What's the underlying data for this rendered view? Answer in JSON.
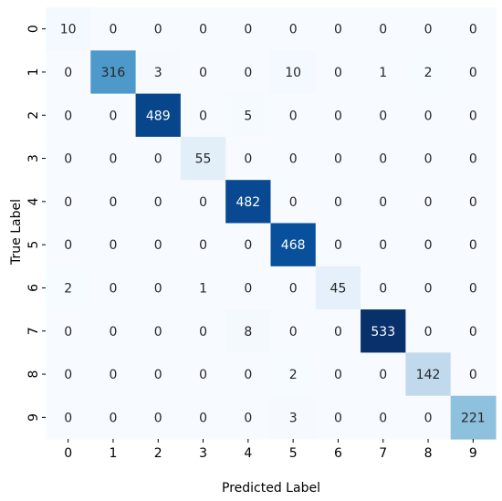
{
  "chart_data": {
    "type": "heatmap",
    "title": "",
    "xlabel": "Predicted Label",
    "ylabel": "True Label",
    "x_categories": [
      "0",
      "1",
      "2",
      "3",
      "4",
      "5",
      "6",
      "7",
      "8",
      "9"
    ],
    "y_categories": [
      "0",
      "1",
      "2",
      "3",
      "4",
      "5",
      "6",
      "7",
      "8",
      "9"
    ],
    "matrix": [
      [
        10,
        0,
        0,
        0,
        0,
        0,
        0,
        0,
        0,
        0
      ],
      [
        0,
        316,
        3,
        0,
        0,
        10,
        0,
        1,
        2,
        0
      ],
      [
        0,
        0,
        489,
        0,
        5,
        0,
        0,
        0,
        0,
        0
      ],
      [
        0,
        0,
        0,
        55,
        0,
        0,
        0,
        0,
        0,
        0
      ],
      [
        0,
        0,
        0,
        0,
        482,
        0,
        0,
        0,
        0,
        0
      ],
      [
        0,
        0,
        0,
        0,
        0,
        468,
        0,
        0,
        0,
        0
      ],
      [
        2,
        0,
        0,
        1,
        0,
        0,
        45,
        0,
        0,
        0
      ],
      [
        0,
        0,
        0,
        0,
        8,
        0,
        0,
        533,
        0,
        0
      ],
      [
        0,
        0,
        0,
        0,
        0,
        2,
        0,
        0,
        142,
        0
      ],
      [
        0,
        0,
        0,
        0,
        0,
        3,
        0,
        0,
        0,
        221
      ]
    ],
    "colormap": "Blues",
    "color_range": [
      0,
      533
    ],
    "colorbar": false,
    "annotations": true
  }
}
